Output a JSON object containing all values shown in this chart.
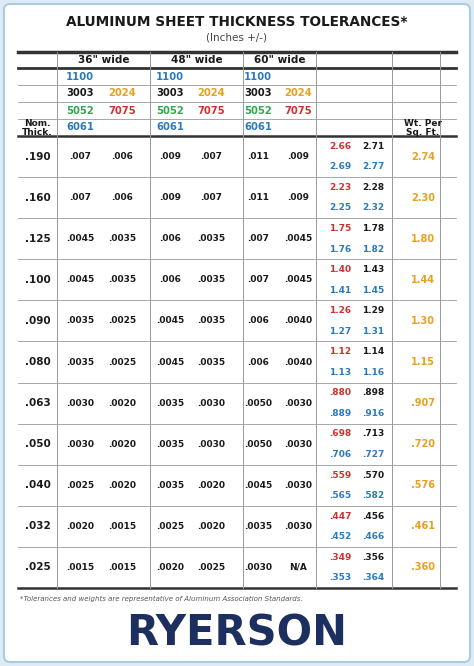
{
  "title": "ALUMINUM SHEET THICKNESS TOLERANCES*",
  "subtitle": "(Inches +/-)",
  "bg_color": "#deeaf5",
  "card_bg": "#ffffff",
  "border_color": "#a8cce0",
  "title_color": "#1a1a1a",
  "subtitle_color": "#444444",
  "col_headers": [
    "36\" wide",
    "48\" wide",
    "60\" wide"
  ],
  "data_rows": [
    {
      "thick": ".190",
      "vals": [
        ".007",
        ".006",
        ".009",
        ".007",
        ".011",
        ".009"
      ],
      "wt_top": [
        "2.66",
        "2.71"
      ],
      "wt_bot": [
        "2.69",
        "2.77"
      ],
      "wt_right": "2.74"
    },
    {
      "thick": ".160",
      "vals": [
        ".007",
        ".006",
        ".009",
        ".007",
        ".011",
        ".009"
      ],
      "wt_top": [
        "2.23",
        "2.28"
      ],
      "wt_bot": [
        "2.25",
        "2.32"
      ],
      "wt_right": "2.30"
    },
    {
      "thick": ".125",
      "vals": [
        ".0045",
        ".0035",
        ".006",
        ".0035",
        ".007",
        ".0045"
      ],
      "wt_top": [
        "1.75",
        "1.78"
      ],
      "wt_bot": [
        "1.76",
        "1.82"
      ],
      "wt_right": "1.80"
    },
    {
      "thick": ".100",
      "vals": [
        ".0045",
        ".0035",
        ".006",
        ".0035",
        ".007",
        ".0045"
      ],
      "wt_top": [
        "1.40",
        "1.43"
      ],
      "wt_bot": [
        "1.41",
        "1.45"
      ],
      "wt_right": "1.44"
    },
    {
      "thick": ".090",
      "vals": [
        ".0035",
        ".0025",
        ".0045",
        ".0035",
        ".006",
        ".0040"
      ],
      "wt_top": [
        "1.26",
        "1.29"
      ],
      "wt_bot": [
        "1.27",
        "1.31"
      ],
      "wt_right": "1.30"
    },
    {
      "thick": ".080",
      "vals": [
        ".0035",
        ".0025",
        ".0045",
        ".0035",
        ".006",
        ".0040"
      ],
      "wt_top": [
        "1.12",
        "1.14"
      ],
      "wt_bot": [
        "1.13",
        "1.16"
      ],
      "wt_right": "1.15"
    },
    {
      "thick": ".063",
      "vals": [
        ".0030",
        ".0020",
        ".0035",
        ".0030",
        ".0050",
        ".0030"
      ],
      "wt_top": [
        ".880",
        ".898"
      ],
      "wt_bot": [
        ".889",
        ".916"
      ],
      "wt_right": ".907"
    },
    {
      "thick": ".050",
      "vals": [
        ".0030",
        ".0020",
        ".0035",
        ".0030",
        ".0050",
        ".0030"
      ],
      "wt_top": [
        ".698",
        ".713"
      ],
      "wt_bot": [
        ".706",
        ".727"
      ],
      "wt_right": ".720"
    },
    {
      "thick": ".040",
      "vals": [
        ".0025",
        ".0020",
        ".0035",
        ".0020",
        ".0045",
        ".0030"
      ],
      "wt_top": [
        ".559",
        ".570"
      ],
      "wt_bot": [
        ".565",
        ".582"
      ],
      "wt_right": ".576"
    },
    {
      "thick": ".032",
      "vals": [
        ".0020",
        ".0015",
        ".0025",
        ".0020",
        ".0035",
        ".0030"
      ],
      "wt_top": [
        ".447",
        ".456"
      ],
      "wt_bot": [
        ".452",
        ".466"
      ],
      "wt_right": ".461"
    },
    {
      "thick": ".025",
      "vals": [
        ".0015",
        ".0015",
        ".0020",
        ".0025",
        ".0030",
        "N/A"
      ],
      "wt_top": [
        ".349",
        ".356"
      ],
      "wt_bot": [
        ".353",
        ".364"
      ],
      "wt_right": ".360"
    }
  ],
  "footnote": "*Tolerances and weights are representative of Aluminum Association Standards.",
  "ryerson_color": "#1c2f5e",
  "wt_right_color": "#e8a020",
  "line_color": "#999999",
  "heavy_line_color": "#333333",
  "wt_top_colors": [
    "#d03030",
    "#1a1a1a"
  ],
  "wt_bot_colors": [
    "#2b7abd",
    "#2b7abd"
  ],
  "color_1100": "#2b7abd",
  "color_3003": "#1a1a1a",
  "color_2024": "#e8a020",
  "color_5052": "#2ea84e",
  "color_7075": "#d03030",
  "color_6061": "#2b7abd"
}
